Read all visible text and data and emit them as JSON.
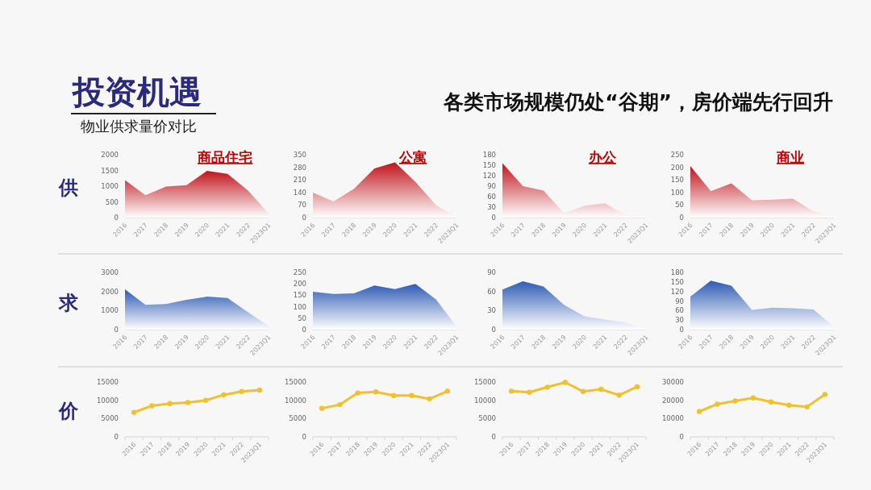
{
  "chart_data": [
    {
      "type": "other",
      "title": "投资机遇",
      "subtitle": "物业供求量价对比",
      "annotations": [
        "各类市场规模仍处“谷期”，房价端先行回升"
      ]
    },
    {
      "type": "area",
      "title": "商品住宅",
      "ylabel": "供",
      "color": "#c0141c",
      "categories": [
        "2016",
        "2017",
        "2018",
        "2019",
        "2020",
        "2021",
        "2022",
        "2023Q1"
      ],
      "values": [
        1190,
        710,
        990,
        1030,
        1490,
        1390,
        860,
        130
      ],
      "ylim": [
        0,
        2000
      ],
      "yticks": [
        0,
        500,
        1000,
        1500,
        2000
      ]
    },
    {
      "type": "area",
      "title": "公寓",
      "color": "#c0141c",
      "categories": [
        "2016",
        "2017",
        "2018",
        "2019",
        "2020",
        "2021",
        "2022",
        "2023Q1"
      ],
      "values": [
        139,
        90,
        160,
        274,
        308,
        199,
        69,
        5
      ],
      "ylim": [
        0,
        350
      ],
      "yticks": [
        0,
        70,
        140,
        210,
        280,
        350
      ]
    },
    {
      "type": "area",
      "title": "办公",
      "color": "#c0141c",
      "categories": [
        "2016",
        "2017",
        "2018",
        "2019",
        "2020",
        "2021",
        "2022",
        "2023Q1"
      ],
      "values": [
        156,
        90,
        77,
        13,
        34,
        41,
        7,
        5
      ],
      "ylim": [
        0,
        180
      ],
      "yticks": [
        0,
        30,
        60,
        90,
        120,
        150,
        180
      ]
    },
    {
      "type": "area",
      "title": "商业",
      "color": "#c0141c",
      "categories": [
        "2016",
        "2017",
        "2018",
        "2019",
        "2020",
        "2021",
        "2022",
        "2023Q1"
      ],
      "values": [
        205,
        105,
        136,
        69,
        71,
        75,
        25,
        4
      ],
      "ylim": [
        0,
        250
      ],
      "yticks": [
        0,
        50,
        100,
        150,
        200,
        250
      ]
    },
    {
      "type": "area",
      "ylabel": "求",
      "color": "#2e5cb4",
      "categories": [
        "2016",
        "2017",
        "2018",
        "2019",
        "2020",
        "2021",
        "2022",
        "2023Q1"
      ],
      "values": [
        2110,
        1300,
        1340,
        1560,
        1730,
        1660,
        910,
        200
      ],
      "ylim": [
        0,
        3000
      ],
      "yticks": [
        0,
        1000,
        2000,
        3000
      ]
    },
    {
      "type": "area",
      "color": "#2e5cb4",
      "categories": [
        "2016",
        "2017",
        "2018",
        "2019",
        "2020",
        "2021",
        "2022",
        "2023Q1"
      ],
      "values": [
        165,
        156,
        158,
        193,
        177,
        200,
        132,
        14
      ],
      "ylim": [
        0,
        250
      ],
      "yticks": [
        0,
        50,
        100,
        150,
        200,
        250
      ]
    },
    {
      "type": "area",
      "color": "#2e5cb4",
      "categories": [
        "2016",
        "2017",
        "2018",
        "2019",
        "2020",
        "2021",
        "2022",
        "2023Q1"
      ],
      "values": [
        63,
        76,
        68,
        39,
        21,
        16,
        11,
        1
      ],
      "ylim": [
        0,
        90
      ],
      "yticks": [
        0,
        30,
        60,
        90
      ]
    },
    {
      "type": "area",
      "color": "#2e5cb4",
      "categories": [
        "2016",
        "2017",
        "2018",
        "2019",
        "2020",
        "2021",
        "2022",
        "2023Q1"
      ],
      "values": [
        104,
        154,
        138,
        62,
        69,
        67,
        63,
        9
      ],
      "ylim": [
        0,
        180
      ],
      "yticks": [
        0,
        30,
        60,
        90,
        120,
        150,
        180
      ]
    },
    {
      "type": "line",
      "ylabel": "价",
      "color": "#f0c030",
      "marker": "circle",
      "categories": [
        "2016",
        "2017",
        "2018",
        "2019",
        "2020",
        "2021",
        "2022",
        "2023Q1"
      ],
      "values": [
        6700,
        8500,
        9100,
        9400,
        10000,
        11500,
        12400,
        12800
      ],
      "ylim": [
        0,
        15000
      ],
      "yticks": [
        0,
        5000,
        10000,
        15000
      ]
    },
    {
      "type": "line",
      "color": "#f0c030",
      "marker": "circle",
      "categories": [
        "2016",
        "2017",
        "2018",
        "2019",
        "2020",
        "2021",
        "2022",
        "2023Q1"
      ],
      "values": [
        7800,
        8800,
        12000,
        12300,
        11300,
        11300,
        10400,
        12500
      ],
      "ylim": [
        0,
        15000
      ],
      "yticks": [
        0,
        5000,
        10000,
        15000
      ]
    },
    {
      "type": "line",
      "color": "#f0c030",
      "marker": "circle",
      "categories": [
        "2016",
        "2017",
        "2018",
        "2019",
        "2020",
        "2021",
        "2022",
        "2023Q1"
      ],
      "values": [
        12500,
        12200,
        13600,
        14900,
        12400,
        13000,
        11400,
        13700
      ],
      "ylim": [
        0,
        15000
      ],
      "yticks": [
        0,
        5000,
        10000,
        15000
      ]
    },
    {
      "type": "line",
      "color": "#f0c030",
      "marker": "circle",
      "categories": [
        "2016",
        "2017",
        "2018",
        "2019",
        "2020",
        "2021",
        "2022",
        "2023Q1"
      ],
      "values": [
        13900,
        17900,
        19600,
        21300,
        19100,
        17300,
        16400,
        23200
      ],
      "ylim": [
        0,
        30000
      ],
      "yticks": [
        0,
        10000,
        20000,
        30000
      ]
    }
  ]
}
